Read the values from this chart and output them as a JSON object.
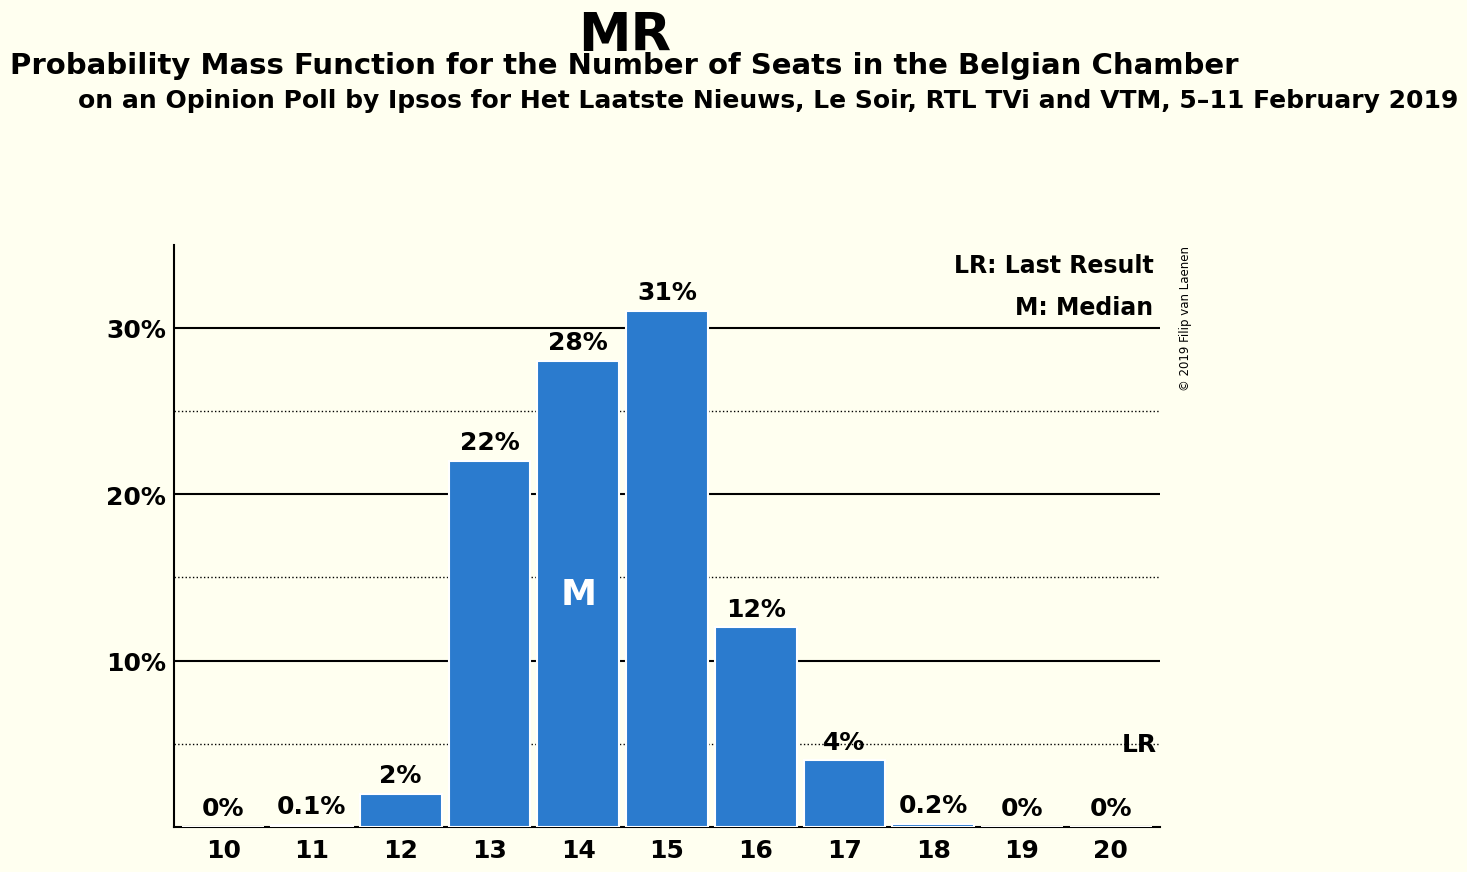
{
  "title": "MR",
  "subtitle1": "Probability Mass Function for the Number of Seats in the Belgian Chamber",
  "subtitle2": "on an Opinion Poll by Ipsos for Het Laatste Nieuws, Le Soir, RTL TVi and VTM, 5–11 February 2019",
  "copyright": "© 2019 Filip van Laenen",
  "legend_lr": "LR: Last Result",
  "legend_m": "M: Median",
  "categories": [
    10,
    11,
    12,
    13,
    14,
    15,
    16,
    17,
    18,
    19,
    20
  ],
  "values": [
    0.0,
    0.1,
    2.0,
    22.0,
    28.0,
    31.0,
    12.0,
    4.0,
    0.2,
    0.0,
    0.0
  ],
  "bar_color": "#2b7bce",
  "background_color": "#fffff0",
  "median_seat": 14,
  "lr_seat": 20,
  "title_fontsize": 38,
  "subtitle1_fontsize": 21,
  "subtitle2_fontsize": 18,
  "axis_label_fontsize": 18,
  "bar_label_fontsize": 18,
  "legend_fontsize": 17
}
